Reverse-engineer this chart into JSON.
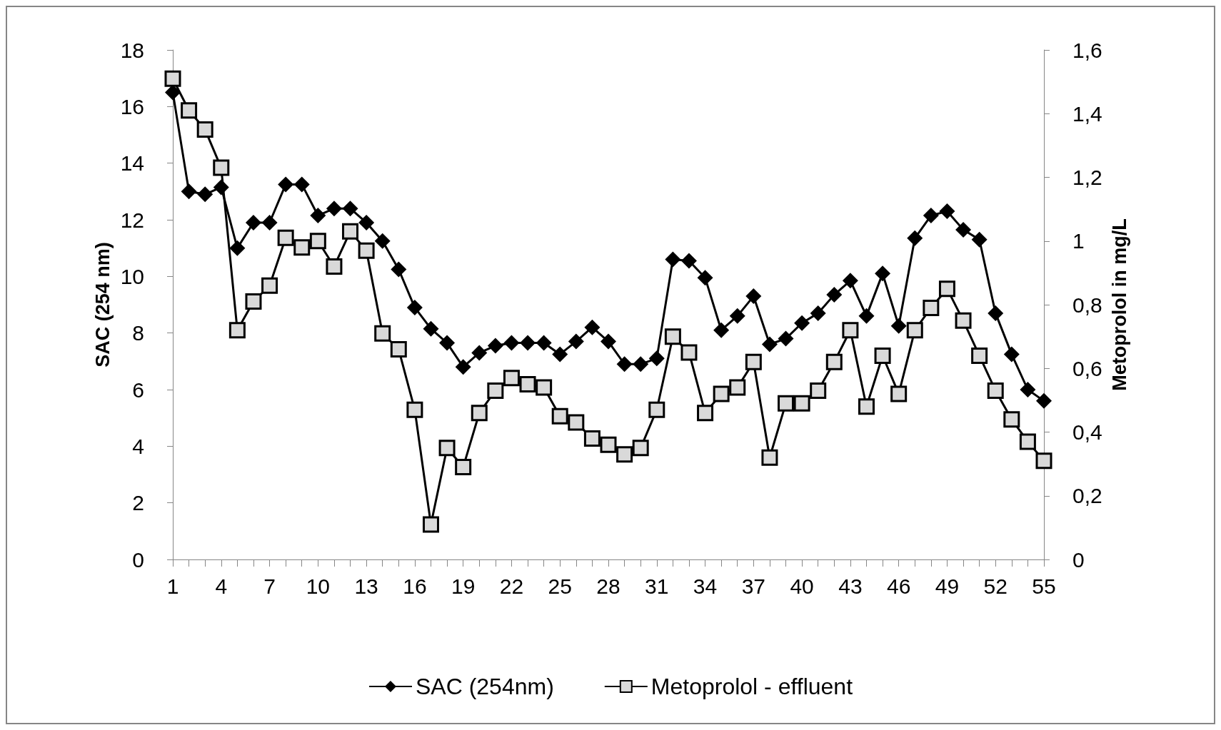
{
  "chart_data": {
    "type": "line",
    "ylabel": "SAC (254 nm)",
    "y2label": "Metoprolol in mg/L",
    "categories": [
      "1",
      null,
      null,
      "4",
      null,
      null,
      "7",
      null,
      null,
      "10",
      null,
      null,
      "13",
      null,
      null,
      "16",
      null,
      null,
      "19",
      null,
      null,
      "22",
      null,
      null,
      "25",
      null,
      null,
      "28",
      null,
      null,
      "31",
      null,
      null,
      "34",
      null,
      null,
      "37",
      null,
      null,
      "40",
      null,
      null,
      "43",
      null,
      null,
      "46",
      null,
      null,
      "49",
      null,
      null,
      "52",
      null,
      null,
      "55"
    ],
    "series": [
      {
        "name": "SAC (254nm)",
        "color": "#000000",
        "marker": "diamond",
        "values": [
          16.5,
          13.0,
          12.9,
          13.15,
          11.0,
          11.9,
          11.9,
          13.25,
          13.25,
          12.15,
          12.4,
          12.4,
          11.9,
          11.25,
          10.25,
          8.9,
          8.15,
          7.65,
          6.8,
          7.3,
          7.55,
          7.65,
          7.65,
          7.65,
          7.25,
          7.7,
          8.2,
          7.7,
          6.9,
          6.9,
          7.1,
          10.6,
          10.55,
          9.95,
          8.1,
          8.6,
          9.3,
          7.6,
          7.8,
          8.35,
          8.7,
          9.35,
          9.85,
          8.6,
          10.1,
          8.25,
          11.35,
          12.15,
          12.3,
          11.65,
          11.3,
          8.7,
          7.25,
          6.0,
          5.6
        ]
      },
      {
        "name": "Metoprolol - effluent",
        "color": "#d9d9d9",
        "marker": "square",
        "axis": "y2",
        "values": [
          1.51,
          1.41,
          1.35,
          1.23,
          0.72,
          0.81,
          0.86,
          1.01,
          0.98,
          1.0,
          0.92,
          1.03,
          0.97,
          0.71,
          0.66,
          0.47,
          0.11,
          0.35,
          0.29,
          0.46,
          0.53,
          0.57,
          0.55,
          0.54,
          0.45,
          0.43,
          0.38,
          0.36,
          0.33,
          0.35,
          0.47,
          0.7,
          0.65,
          0.46,
          0.52,
          0.54,
          0.62,
          0.32,
          0.49,
          0.49,
          0.53,
          0.62,
          0.72,
          0.48,
          0.64,
          0.52,
          0.72,
          0.79,
          0.85,
          0.75,
          0.64,
          0.53,
          0.44,
          0.37,
          0.31
        ]
      }
    ],
    "ylim": [
      0,
      18
    ],
    "yticks": [
      0,
      2,
      4,
      6,
      8,
      10,
      12,
      14,
      16,
      18
    ],
    "y2lim": [
      0,
      1.6
    ],
    "y2ticks": [
      0,
      {
        "value": 0.2,
        "label": "0,2"
      },
      {
        "value": 0.4,
        "label": "0,4"
      },
      {
        "value": 0.6,
        "label": "0,6"
      },
      {
        "value": 0.8,
        "label": "0,8"
      },
      1,
      {
        "value": 1.2,
        "label": "1,2"
      },
      {
        "value": 1.4,
        "label": "1,4"
      },
      {
        "value": 1.6,
        "label": "1,6"
      }
    ],
    "grid": false,
    "legend": "bottom",
    "line_style": "solid"
  }
}
